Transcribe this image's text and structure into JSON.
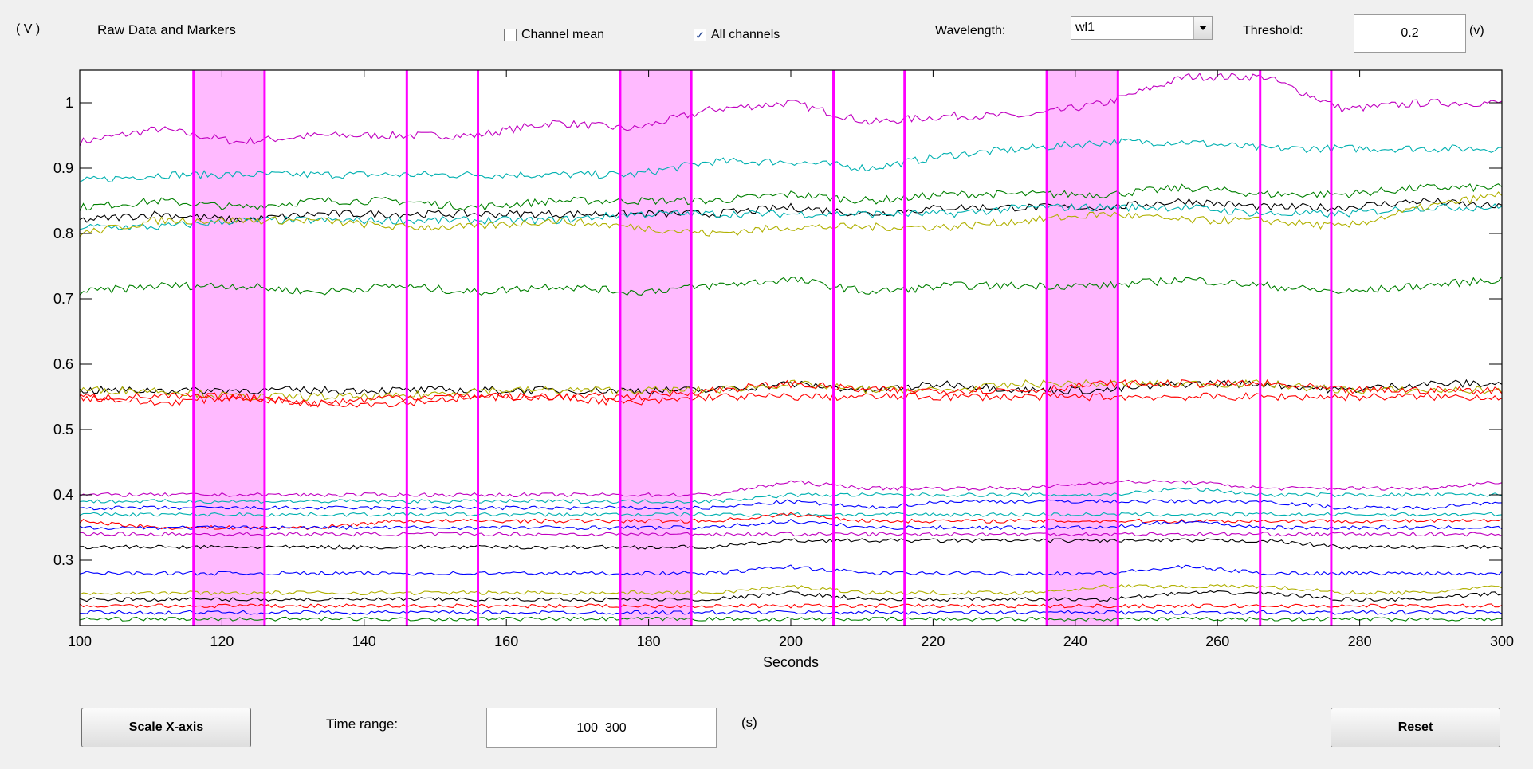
{
  "header": {
    "unit_label": "( V )",
    "title": "Raw Data and Markers",
    "channel_mean_label": "Channel mean",
    "channel_mean_checked": false,
    "all_channels_label": "All channels",
    "all_channels_checked": true,
    "wavelength_label": "Wavelength:",
    "wavelength_value": "wl1",
    "threshold_label": "Threshold:",
    "threshold_value": "0.2",
    "threshold_unit": "(v)"
  },
  "footer": {
    "scale_button": "Scale X-axis",
    "time_range_label": "Time range:",
    "time_range_value": "100  300",
    "time_unit": "(s)",
    "reset_button": "Reset"
  },
  "chart_data": {
    "type": "line",
    "xlabel": "Seconds",
    "ylabel": "",
    "xlim": [
      100,
      300
    ],
    "ylim": [
      0.2,
      1.05
    ],
    "xticks": [
      100,
      120,
      140,
      160,
      180,
      200,
      220,
      240,
      260,
      280,
      300
    ],
    "yticks": [
      0.3,
      0.4,
      0.5,
      0.6,
      0.7,
      0.8,
      0.9,
      1
    ],
    "xtick_labels": [
      "100",
      "120",
      "140",
      "160",
      "180",
      "200",
      "220",
      "240",
      "260",
      "280",
      "300"
    ],
    "ytick_labels": [
      "0.3",
      "0.4",
      "0.5",
      "0.6",
      "0.7",
      "0.8",
      "0.9",
      "1"
    ],
    "marker_color": "#ff00ff",
    "band_color": "#ffbaff",
    "marker_bands": [
      [
        116,
        126
      ],
      [
        176,
        186
      ],
      [
        236,
        246
      ]
    ],
    "marker_lines": [
      146,
      156,
      206,
      216,
      266,
      276
    ],
    "series": [
      {
        "color": "#c000c0",
        "values": [
          0.94,
          0.96,
          0.94,
          0.95,
          0.95,
          0.95,
          0.97,
          0.96,
          0.99,
          1.0,
          0.97,
          0.98,
          0.98,
          1.0,
          1.04,
          1.04,
          0.99,
          1.0,
          1.0
        ]
      },
      {
        "color": "#00b0b0",
        "values": [
          0.88,
          0.89,
          0.89,
          0.89,
          0.89,
          0.89,
          0.89,
          0.89,
          0.91,
          0.91,
          0.9,
          0.92,
          0.93,
          0.94,
          0.94,
          0.93,
          0.93,
          0.93,
          0.93
        ]
      },
      {
        "color": "#008000",
        "values": [
          0.84,
          0.85,
          0.84,
          0.85,
          0.85,
          0.84,
          0.85,
          0.85,
          0.85,
          0.86,
          0.85,
          0.86,
          0.86,
          0.86,
          0.87,
          0.86,
          0.86,
          0.87,
          0.87
        ]
      },
      {
        "color": "#000000",
        "values": [
          0.82,
          0.83,
          0.82,
          0.83,
          0.83,
          0.83,
          0.83,
          0.83,
          0.83,
          0.84,
          0.83,
          0.84,
          0.84,
          0.84,
          0.85,
          0.84,
          0.84,
          0.85,
          0.84
        ]
      },
      {
        "color": "#00b0b0",
        "values": [
          0.81,
          0.81,
          0.82,
          0.82,
          0.82,
          0.82,
          0.82,
          0.83,
          0.83,
          0.83,
          0.83,
          0.83,
          0.84,
          0.84,
          0.84,
          0.83,
          0.83,
          0.84,
          0.84
        ]
      },
      {
        "color": "#b0b000",
        "values": [
          0.8,
          0.82,
          0.82,
          0.82,
          0.81,
          0.81,
          0.82,
          0.81,
          0.8,
          0.81,
          0.81,
          0.81,
          0.82,
          0.83,
          0.82,
          0.82,
          0.81,
          0.84,
          0.86
        ]
      },
      {
        "color": "#008000",
        "values": [
          0.71,
          0.72,
          0.72,
          0.71,
          0.72,
          0.71,
          0.72,
          0.71,
          0.72,
          0.73,
          0.71,
          0.72,
          0.72,
          0.72,
          0.73,
          0.72,
          0.71,
          0.72,
          0.73
        ]
      },
      {
        "color": "#000000",
        "values": [
          0.56,
          0.56,
          0.56,
          0.56,
          0.56,
          0.56,
          0.56,
          0.56,
          0.56,
          0.57,
          0.56,
          0.57,
          0.56,
          0.56,
          0.57,
          0.57,
          0.56,
          0.57,
          0.57
        ]
      },
      {
        "color": "#b0b000",
        "values": [
          0.56,
          0.56,
          0.55,
          0.55,
          0.55,
          0.56,
          0.56,
          0.56,
          0.56,
          0.57,
          0.56,
          0.56,
          0.57,
          0.57,
          0.57,
          0.57,
          0.56,
          0.56,
          0.56
        ]
      },
      {
        "color": "#ff0000",
        "values": [
          0.55,
          0.55,
          0.55,
          0.54,
          0.55,
          0.55,
          0.55,
          0.55,
          0.56,
          0.57,
          0.56,
          0.56,
          0.56,
          0.57,
          0.57,
          0.57,
          0.56,
          0.56,
          0.56
        ]
      },
      {
        "color": "#ff0000",
        "values": [
          0.55,
          0.54,
          0.55,
          0.54,
          0.54,
          0.55,
          0.55,
          0.54,
          0.55,
          0.55,
          0.55,
          0.55,
          0.55,
          0.55,
          0.55,
          0.55,
          0.55,
          0.55,
          0.55
        ]
      },
      {
        "color": "#c000c0",
        "values": [
          0.4,
          0.4,
          0.4,
          0.4,
          0.4,
          0.4,
          0.4,
          0.4,
          0.4,
          0.42,
          0.41,
          0.41,
          0.41,
          0.42,
          0.42,
          0.41,
          0.41,
          0.41,
          0.42
        ]
      },
      {
        "color": "#00b0b0",
        "values": [
          0.39,
          0.39,
          0.39,
          0.39,
          0.39,
          0.39,
          0.39,
          0.39,
          0.39,
          0.4,
          0.4,
          0.4,
          0.4,
          0.4,
          0.41,
          0.4,
          0.4,
          0.4,
          0.4
        ]
      },
      {
        "color": "#0000ff",
        "values": [
          0.38,
          0.38,
          0.38,
          0.38,
          0.38,
          0.38,
          0.38,
          0.38,
          0.38,
          0.39,
          0.38,
          0.39,
          0.39,
          0.39,
          0.39,
          0.39,
          0.38,
          0.38,
          0.39
        ]
      },
      {
        "color": "#00b0b0",
        "values": [
          0.37,
          0.37,
          0.37,
          0.37,
          0.37,
          0.37,
          0.37,
          0.37,
          0.37,
          0.37,
          0.37,
          0.37,
          0.37,
          0.37,
          0.37,
          0.37,
          0.37,
          0.37,
          0.37
        ]
      },
      {
        "color": "#ff0000",
        "values": [
          0.36,
          0.35,
          0.35,
          0.35,
          0.36,
          0.36,
          0.36,
          0.36,
          0.36,
          0.37,
          0.36,
          0.36,
          0.36,
          0.36,
          0.36,
          0.36,
          0.36,
          0.36,
          0.36
        ]
      },
      {
        "color": "#0000ff",
        "values": [
          0.35,
          0.35,
          0.35,
          0.35,
          0.35,
          0.35,
          0.35,
          0.35,
          0.35,
          0.36,
          0.35,
          0.35,
          0.35,
          0.35,
          0.36,
          0.35,
          0.35,
          0.35,
          0.35
        ]
      },
      {
        "color": "#c000c0",
        "values": [
          0.34,
          0.34,
          0.34,
          0.34,
          0.34,
          0.34,
          0.34,
          0.34,
          0.34,
          0.34,
          0.34,
          0.34,
          0.34,
          0.34,
          0.34,
          0.34,
          0.34,
          0.34,
          0.34
        ]
      },
      {
        "color": "#000000",
        "values": [
          0.32,
          0.32,
          0.32,
          0.32,
          0.32,
          0.32,
          0.32,
          0.32,
          0.32,
          0.33,
          0.33,
          0.33,
          0.33,
          0.33,
          0.33,
          0.33,
          0.32,
          0.32,
          0.32
        ]
      },
      {
        "color": "#0000ff",
        "values": [
          0.28,
          0.28,
          0.28,
          0.28,
          0.28,
          0.28,
          0.28,
          0.28,
          0.28,
          0.29,
          0.28,
          0.28,
          0.28,
          0.28,
          0.29,
          0.28,
          0.28,
          0.28,
          0.28
        ]
      },
      {
        "color": "#b0b000",
        "values": [
          0.25,
          0.25,
          0.25,
          0.25,
          0.25,
          0.25,
          0.25,
          0.25,
          0.25,
          0.26,
          0.25,
          0.25,
          0.25,
          0.26,
          0.26,
          0.26,
          0.25,
          0.25,
          0.26
        ]
      },
      {
        "color": "#000000",
        "values": [
          0.24,
          0.24,
          0.24,
          0.24,
          0.24,
          0.24,
          0.24,
          0.24,
          0.24,
          0.25,
          0.24,
          0.24,
          0.24,
          0.24,
          0.25,
          0.25,
          0.24,
          0.24,
          0.25
        ]
      },
      {
        "color": "#ff0000",
        "values": [
          0.23,
          0.23,
          0.23,
          0.23,
          0.23,
          0.23,
          0.23,
          0.23,
          0.23,
          0.23,
          0.23,
          0.23,
          0.23,
          0.23,
          0.23,
          0.23,
          0.23,
          0.23,
          0.23
        ]
      },
      {
        "color": "#0000ff",
        "values": [
          0.22,
          0.22,
          0.22,
          0.22,
          0.22,
          0.22,
          0.22,
          0.22,
          0.22,
          0.22,
          0.22,
          0.22,
          0.22,
          0.22,
          0.22,
          0.22,
          0.22,
          0.22,
          0.22
        ]
      },
      {
        "color": "#008000",
        "values": [
          0.21,
          0.21,
          0.21,
          0.21,
          0.21,
          0.21,
          0.21,
          0.21,
          0.21,
          0.21,
          0.21,
          0.21,
          0.21,
          0.21,
          0.21,
          0.21,
          0.21,
          0.21,
          0.21
        ]
      }
    ]
  }
}
